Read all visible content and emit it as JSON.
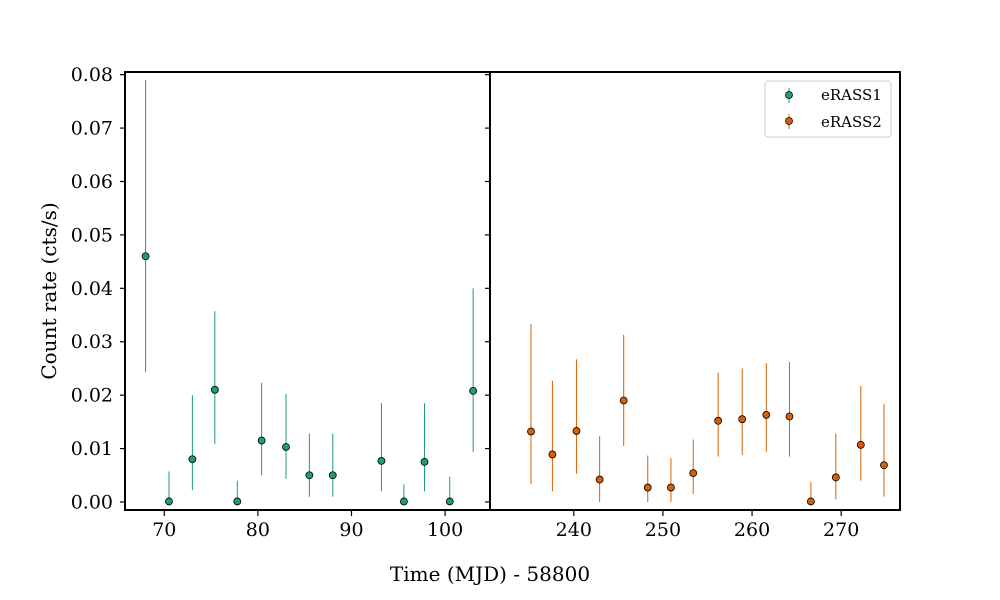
{
  "chart_data": {
    "type": "scatter",
    "title": "",
    "xlabel": "Time (MJD) - 58800",
    "ylabel": "Count rate (cts/s)",
    "ylim": [
      -0.0015,
      0.0805
    ],
    "yticks": [
      0.0,
      0.01,
      0.02,
      0.03,
      0.04,
      0.05,
      0.06,
      0.07,
      0.08
    ],
    "ytick_labels": [
      "0.00",
      "0.01",
      "0.02",
      "0.03",
      "0.04",
      "0.05",
      "0.06",
      "0.07",
      "0.08"
    ],
    "legend_position": "top-right",
    "panels": [
      {
        "name": "left",
        "xlim": [
          65.8,
          104.8
        ],
        "xticks": [
          70,
          80,
          90,
          100
        ],
        "xtick_labels": [
          "70",
          "80",
          "90",
          "100"
        ]
      },
      {
        "name": "right",
        "xlim": [
          230.6,
          276.6
        ],
        "xticks": [
          240,
          250,
          260,
          270
        ],
        "xtick_labels": [
          "240",
          "250",
          "260",
          "270"
        ]
      }
    ],
    "series": [
      {
        "name": "eRASS1",
        "panel": 0,
        "color": "#1b9e77",
        "x": [
          68.0,
          70.5,
          73.0,
          75.4,
          77.8,
          80.4,
          83.0,
          85.5,
          88.0,
          93.2,
          95.6,
          97.8,
          100.5,
          103.0
        ],
        "y": [
          0.046,
          0.0001,
          0.008,
          0.021,
          0.0001,
          0.0115,
          0.0103,
          0.005,
          0.005,
          0.0077,
          0.0001,
          0.0075,
          0.0001,
          0.0208
        ],
        "y_low": [
          0.0243,
          0.0,
          0.0022,
          0.0108,
          0.0,
          0.005,
          0.0043,
          0.001,
          0.001,
          0.002,
          0.0,
          0.002,
          0.0,
          0.0093
        ],
        "y_high": [
          0.079,
          0.0057,
          0.02,
          0.0357,
          0.004,
          0.0223,
          0.0202,
          0.0128,
          0.0128,
          0.0185,
          0.0033,
          0.0185,
          0.0047,
          0.04
        ]
      },
      {
        "name": "eRASS2",
        "panel": 1,
        "color": "#d95f02",
        "x": [
          235.2,
          237.6,
          240.3,
          242.9,
          245.6,
          248.3,
          250.9,
          253.4,
          256.2,
          258.9,
          261.6,
          264.2,
          266.6,
          269.4,
          272.2,
          274.8
        ],
        "y": [
          0.0132,
          0.0089,
          0.0133,
          0.0042,
          0.019,
          0.0027,
          0.0027,
          0.0054,
          0.0152,
          0.0155,
          0.0163,
          0.016,
          0.0001,
          0.0046,
          0.0107,
          0.0069
        ],
        "y_low": [
          0.0033,
          0.002,
          0.0053,
          0.0,
          0.0105,
          0.0,
          0.0,
          0.0015,
          0.0085,
          0.0088,
          0.0094,
          0.0085,
          0.0,
          0.0005,
          0.004,
          0.001
        ],
        "y_high": [
          0.0333,
          0.0227,
          0.0267,
          0.0123,
          0.0313,
          0.0087,
          0.0082,
          0.0117,
          0.0242,
          0.025,
          0.026,
          0.0262,
          0.0037,
          0.0128,
          0.0217,
          0.0183
        ]
      }
    ]
  }
}
